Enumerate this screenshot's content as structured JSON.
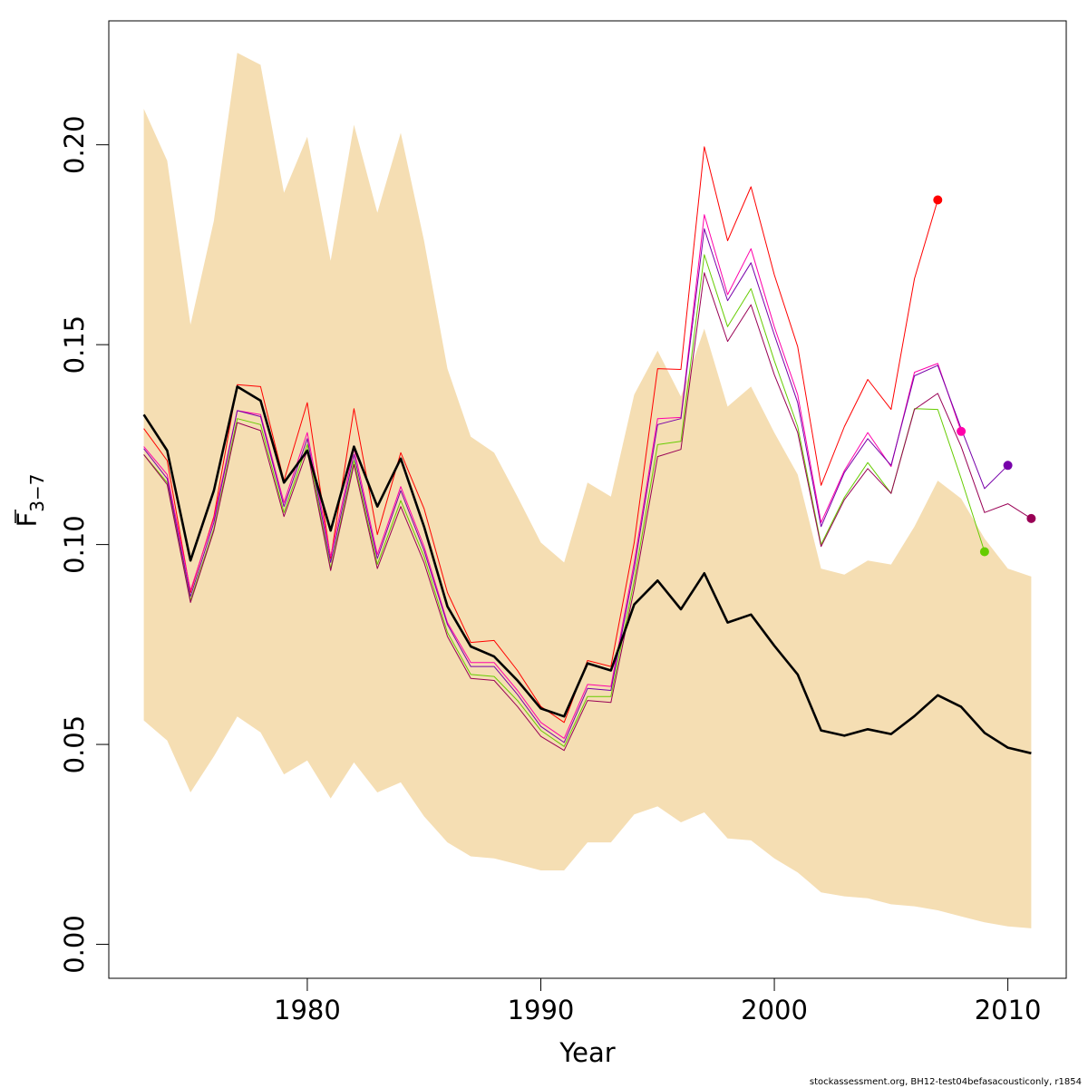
{
  "chart_data": {
    "type": "line",
    "xlabel": "Year",
    "ylabel": {
      "main": "F",
      "sub": "3−7"
    },
    "xlim": [
      1971.5,
      2012.5
    ],
    "ylim": [
      -0.0085,
      0.231
    ],
    "xticks": [
      "1980",
      "1990",
      "2000",
      "2010"
    ],
    "yticks": [
      "0.00",
      "0.05",
      "0.10",
      "0.15",
      "0.20"
    ],
    "footer": "stockassessment.org, BH12-test04befasacousticonly, r1854",
    "colors": {
      "band": "#F5DEB3",
      "main": "#000000",
      "peel_2007": "#FF0000",
      "peel_2008": "#FF00AA",
      "peel_2009": "#66CC00",
      "peel_2010": "#7700AA",
      "peel_2011": "#990055"
    },
    "years": [
      1973,
      1974,
      1975,
      1976,
      1977,
      1978,
      1979,
      1980,
      1981,
      1982,
      1983,
      1984,
      1985,
      1986,
      1987,
      1988,
      1989,
      1990,
      1991,
      1992,
      1993,
      1994,
      1995,
      1996,
      1997,
      1998,
      1999,
      2000,
      2001,
      2002,
      2003,
      2004,
      2005,
      2006,
      2007,
      2008,
      2009,
      2010,
      2011
    ],
    "band_upper": [
      0.209,
      0.196,
      0.155,
      0.181,
      0.223,
      0.22,
      0.188,
      0.202,
      0.171,
      0.205,
      0.183,
      0.203,
      0.176,
      0.144,
      0.127,
      0.123,
      0.112,
      0.1005,
      0.0955,
      0.1155,
      0.112,
      0.1375,
      0.1485,
      0.137,
      0.154,
      0.1345,
      0.1395,
      0.128,
      0.1175,
      0.094,
      0.0925,
      0.096,
      0.095,
      0.1045,
      0.116,
      0.1115,
      0.1015,
      0.094,
      0.092
    ],
    "band_lower": [
      0.056,
      0.051,
      0.038,
      0.047,
      0.057,
      0.053,
      0.0425,
      0.046,
      0.0365,
      0.0455,
      0.038,
      0.0405,
      0.032,
      0.0255,
      0.022,
      0.0215,
      0.02,
      0.0185,
      0.0185,
      0.0255,
      0.0255,
      0.0325,
      0.0345,
      0.0305,
      0.033,
      0.0265,
      0.026,
      0.0215,
      0.018,
      0.013,
      0.012,
      0.0115,
      0.01,
      0.0095,
      0.0085,
      0.007,
      0.0055,
      0.0045,
      0.004
    ],
    "series": [
      {
        "key": "main",
        "width": 2.6,
        "values": [
          0.1325,
          0.1235,
          0.096,
          0.1135,
          0.1395,
          0.136,
          0.1155,
          0.1235,
          0.1035,
          0.1245,
          0.1095,
          0.1215,
          0.1045,
          0.0845,
          0.0745,
          0.072,
          0.066,
          0.059,
          0.057,
          0.0703,
          0.0685,
          0.085,
          0.091,
          0.0838,
          0.0928,
          0.0805,
          0.0825,
          0.0747,
          0.0675,
          0.0535,
          0.0522,
          0.0538,
          0.0526,
          0.0571,
          0.0623,
          0.0594,
          0.0529,
          0.0492,
          0.0478
        ]
      },
      {
        "key": "peel_2007",
        "width": 1,
        "values": [
          0.129,
          0.121,
          0.088,
          0.107,
          0.14,
          0.1395,
          0.116,
          0.1355,
          0.0965,
          0.134,
          0.1025,
          0.123,
          0.109,
          0.088,
          0.0755,
          0.076,
          0.0685,
          0.0595,
          0.0555,
          0.071,
          0.0695,
          0.1005,
          0.144,
          0.1438,
          0.1995,
          0.176,
          0.1895,
          0.1675,
          0.1495,
          0.1148,
          0.1295,
          0.1413,
          0.1338,
          0.1665,
          0.1862
        ],
        "end_marker": true
      },
      {
        "key": "peel_2008",
        "width": 1,
        "values": [
          0.1245,
          0.1175,
          0.0885,
          0.1065,
          0.1335,
          0.1325,
          0.1105,
          0.128,
          0.097,
          0.124,
          0.0975,
          0.1145,
          0.0995,
          0.0805,
          0.0705,
          0.0705,
          0.0635,
          0.0555,
          0.0515,
          0.065,
          0.0645,
          0.0955,
          0.1315,
          0.1318,
          0.1825,
          0.1625,
          0.174,
          0.1545,
          0.1375,
          0.1055,
          0.1185,
          0.128,
          0.1195,
          0.1431,
          0.1453,
          0.1283
        ],
        "end_marker": true
      },
      {
        "key": "peel_2009",
        "width": 1,
        "values": [
          0.1225,
          0.1155,
          0.086,
          0.104,
          0.1315,
          0.13,
          0.108,
          0.125,
          0.094,
          0.121,
          0.095,
          0.111,
          0.097,
          0.078,
          0.0675,
          0.067,
          0.061,
          0.0535,
          0.0495,
          0.062,
          0.062,
          0.091,
          0.125,
          0.1258,
          0.1725,
          0.1545,
          0.164,
          0.146,
          0.1295,
          0.1,
          0.1118,
          0.1205,
          0.1128,
          0.134,
          0.1338,
          0.1165,
          0.0982
        ],
        "end_marker": true
      },
      {
        "key": "peel_2010",
        "width": 1,
        "values": [
          0.124,
          0.1165,
          0.087,
          0.1055,
          0.1335,
          0.132,
          0.1095,
          0.1265,
          0.0955,
          0.1225,
          0.0965,
          0.1135,
          0.0985,
          0.08,
          0.0695,
          0.0695,
          0.0625,
          0.0545,
          0.0505,
          0.064,
          0.0635,
          0.094,
          0.13,
          0.1315,
          0.179,
          0.161,
          0.1705,
          0.1525,
          0.1355,
          0.1045,
          0.118,
          0.1265,
          0.1198,
          0.1422,
          0.1448,
          0.129,
          0.114,
          0.1198
        ],
        "end_marker": true
      },
      {
        "key": "peel_2011",
        "width": 1,
        "values": [
          0.1225,
          0.115,
          0.0855,
          0.1035,
          0.1305,
          0.1285,
          0.107,
          0.1235,
          0.0935,
          0.12,
          0.094,
          0.1095,
          0.0955,
          0.077,
          0.0665,
          0.066,
          0.0595,
          0.052,
          0.0485,
          0.061,
          0.0605,
          0.089,
          0.122,
          0.1238,
          0.168,
          0.1508,
          0.16,
          0.1425,
          0.128,
          0.0995,
          0.1112,
          0.119,
          0.1128,
          0.1338,
          0.1378,
          0.1245,
          0.108,
          0.1102,
          0.1065
        ],
        "end_marker": true
      }
    ]
  }
}
